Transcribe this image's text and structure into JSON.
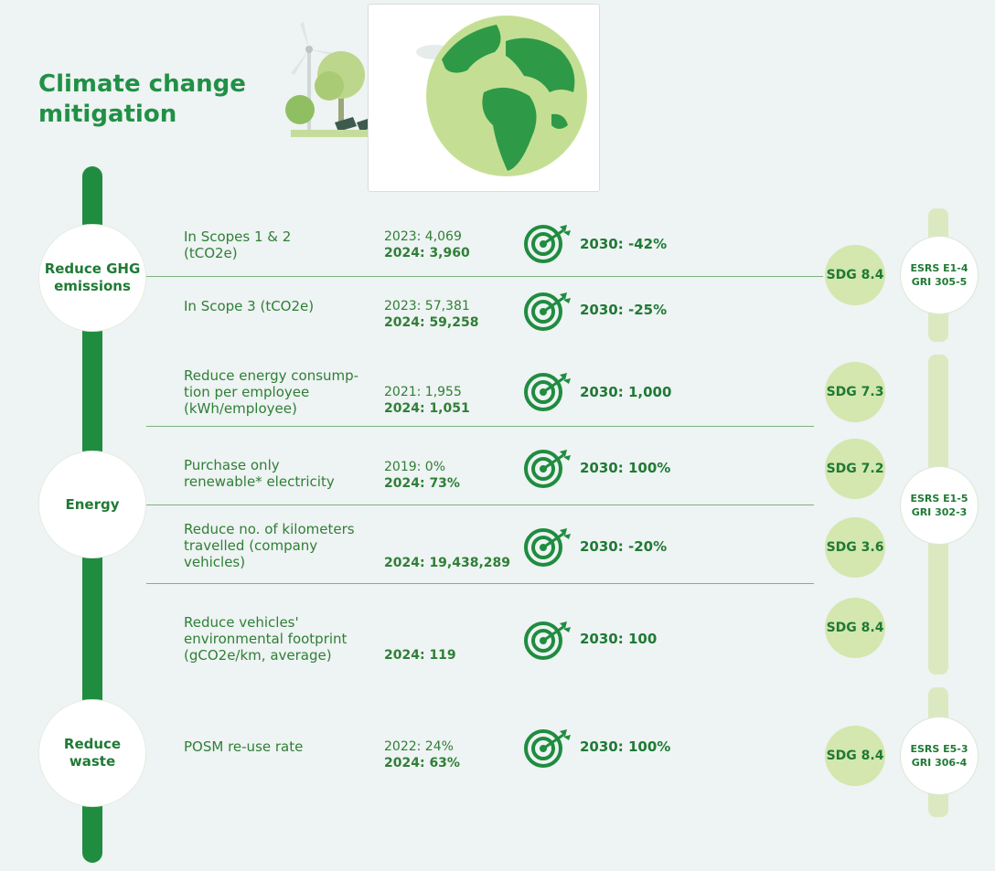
{
  "title": "Climate change mitigation",
  "sections": [
    {
      "label": "Reduce GHG emissions",
      "esrs": "ESRS  E1-4\nGRI  305-5",
      "rows": [
        {
          "desc": "In Scopes 1 & 2 (tCO2e)",
          "base": "2023: 4,069",
          "current": "2024: 3,960",
          "target": "2030: -42%",
          "sdg": "SDG 8.4"
        },
        {
          "desc": "In Scope 3 (tCO2e)",
          "base": "2023: 57,381",
          "current": "2024: 59,258",
          "target": "2030: -25%"
        }
      ]
    },
    {
      "label": "Energy",
      "esrs": "ESRS  E1-5\nGRI  302-3",
      "rows": [
        {
          "desc": "Reduce energy consump-tion per employee (kWh/employee)",
          "base": "2021: 1,955",
          "current": "2024: 1,051",
          "target": "2030: 1,000",
          "sdg": "SDG 7.3"
        },
        {
          "desc": "Purchase only renewable* electricity",
          "base": "2019: 0%",
          "current": "2024: 73%",
          "target": "2030: 100%",
          "sdg": "SDG 7.2"
        },
        {
          "desc": "Reduce no. of kilometers travelled (company vehicles)",
          "current": "2024: 19,438,289",
          "target": "2030: -20%",
          "sdg": "SDG 3.6"
        },
        {
          "desc": "Reduce vehicles' environmental footprint (gCO2e/km, average)",
          "current": "2024: 119",
          "target": "2030: 100",
          "sdg": "SDG 8.4"
        }
      ]
    },
    {
      "label": "Reduce waste",
      "esrs": "ESRS  E5-3\nGRI  306-4",
      "rows": [
        {
          "desc": "POSM re-use rate",
          "base": "2022: 24%",
          "current": "2024: 63%",
          "target": "2030: 100%",
          "sdg": "SDG 8.4"
        }
      ]
    }
  ],
  "colors": {
    "accent": "#1f8c3f",
    "band": "#d6e9b6",
    "sdg_fill": "#d3e7ae"
  },
  "icons": [
    "target-icon",
    "globe-icon",
    "wind-turbine-icon",
    "tree-icon",
    "solar-panel-icon"
  ]
}
